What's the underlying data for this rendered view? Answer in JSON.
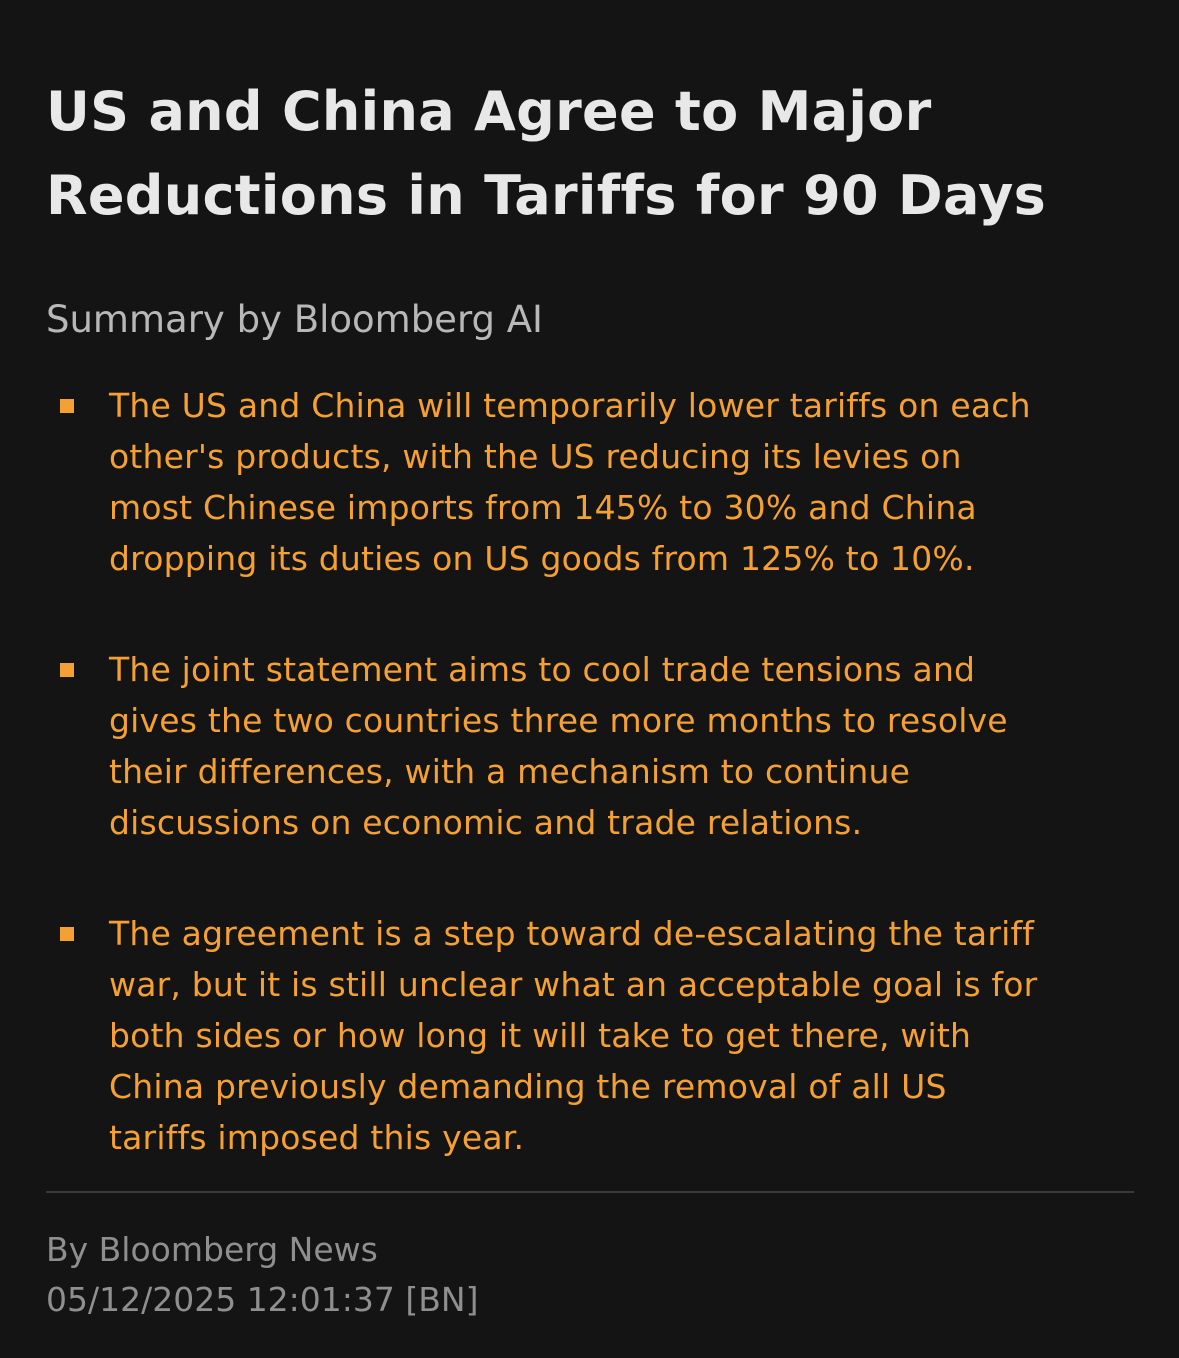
{
  "article": {
    "headline_line1": "US and China Agree to Major",
    "headline_line2": "Reductions in Tariffs for 90 Days",
    "summary_label": "Summary by Bloomberg AI",
    "bullets": [
      {
        "lines": [
          "The US and China will temporarily lower tariffs on each",
          "other's products, with the US reducing its levies on",
          "most Chinese imports from 145% to 30% and China",
          "dropping its duties on US goods from 125% to 10%."
        ]
      },
      {
        "lines": [
          "The joint statement aims to cool trade tensions and",
          "gives the two countries three more months to resolve",
          "their differences, with a mechanism to continue",
          "discussions on economic and trade relations."
        ]
      },
      {
        "lines": [
          "The agreement is a step toward de-escalating the tariff",
          "war, but it is still unclear what an acceptable goal is for",
          "both sides or how long it will take to get there, with",
          "China previously demanding the removal of all US",
          "tariffs imposed this year."
        ]
      }
    ],
    "byline": "By Bloomberg News",
    "timestamp": "05/12/2025 12:01:37 [BN]"
  },
  "colors": {
    "background": "#141414",
    "headline": "#e8e8e8",
    "accent": "#f5a033",
    "muted": "#8f8f8f"
  }
}
